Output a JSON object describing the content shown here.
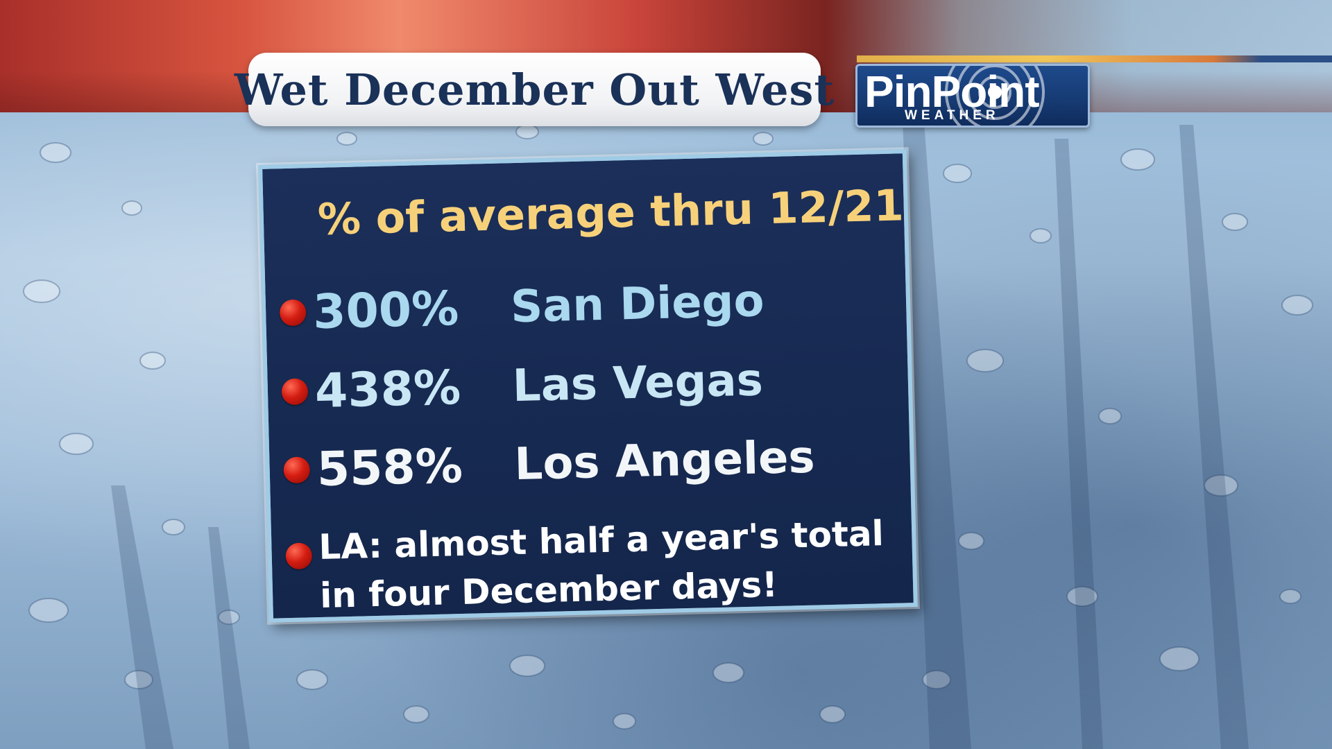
{
  "title": "Wet December Out West",
  "logo": {
    "main": "PinPoint",
    "sub": "WEATHER"
  },
  "panel": {
    "heading": "% of average thru 12/21",
    "items": [
      {
        "percent": "300%",
        "city": "San Diego"
      },
      {
        "percent": "438%",
        "city": "Las Vegas"
      },
      {
        "percent": "558%",
        "city": "Los Angeles"
      }
    ],
    "note": {
      "line1": "LA: almost half a year's total",
      "line2": "in four December days!"
    },
    "bullet_color": "#d41d12",
    "heading_color": "#f7d17a",
    "border_color": "#9fcbe6"
  },
  "colors": {
    "title_text": "#1a3158",
    "panel_bg": "#1b2f5a",
    "band_red": "#c8443a",
    "logo_blue": "#1e4a8c"
  }
}
